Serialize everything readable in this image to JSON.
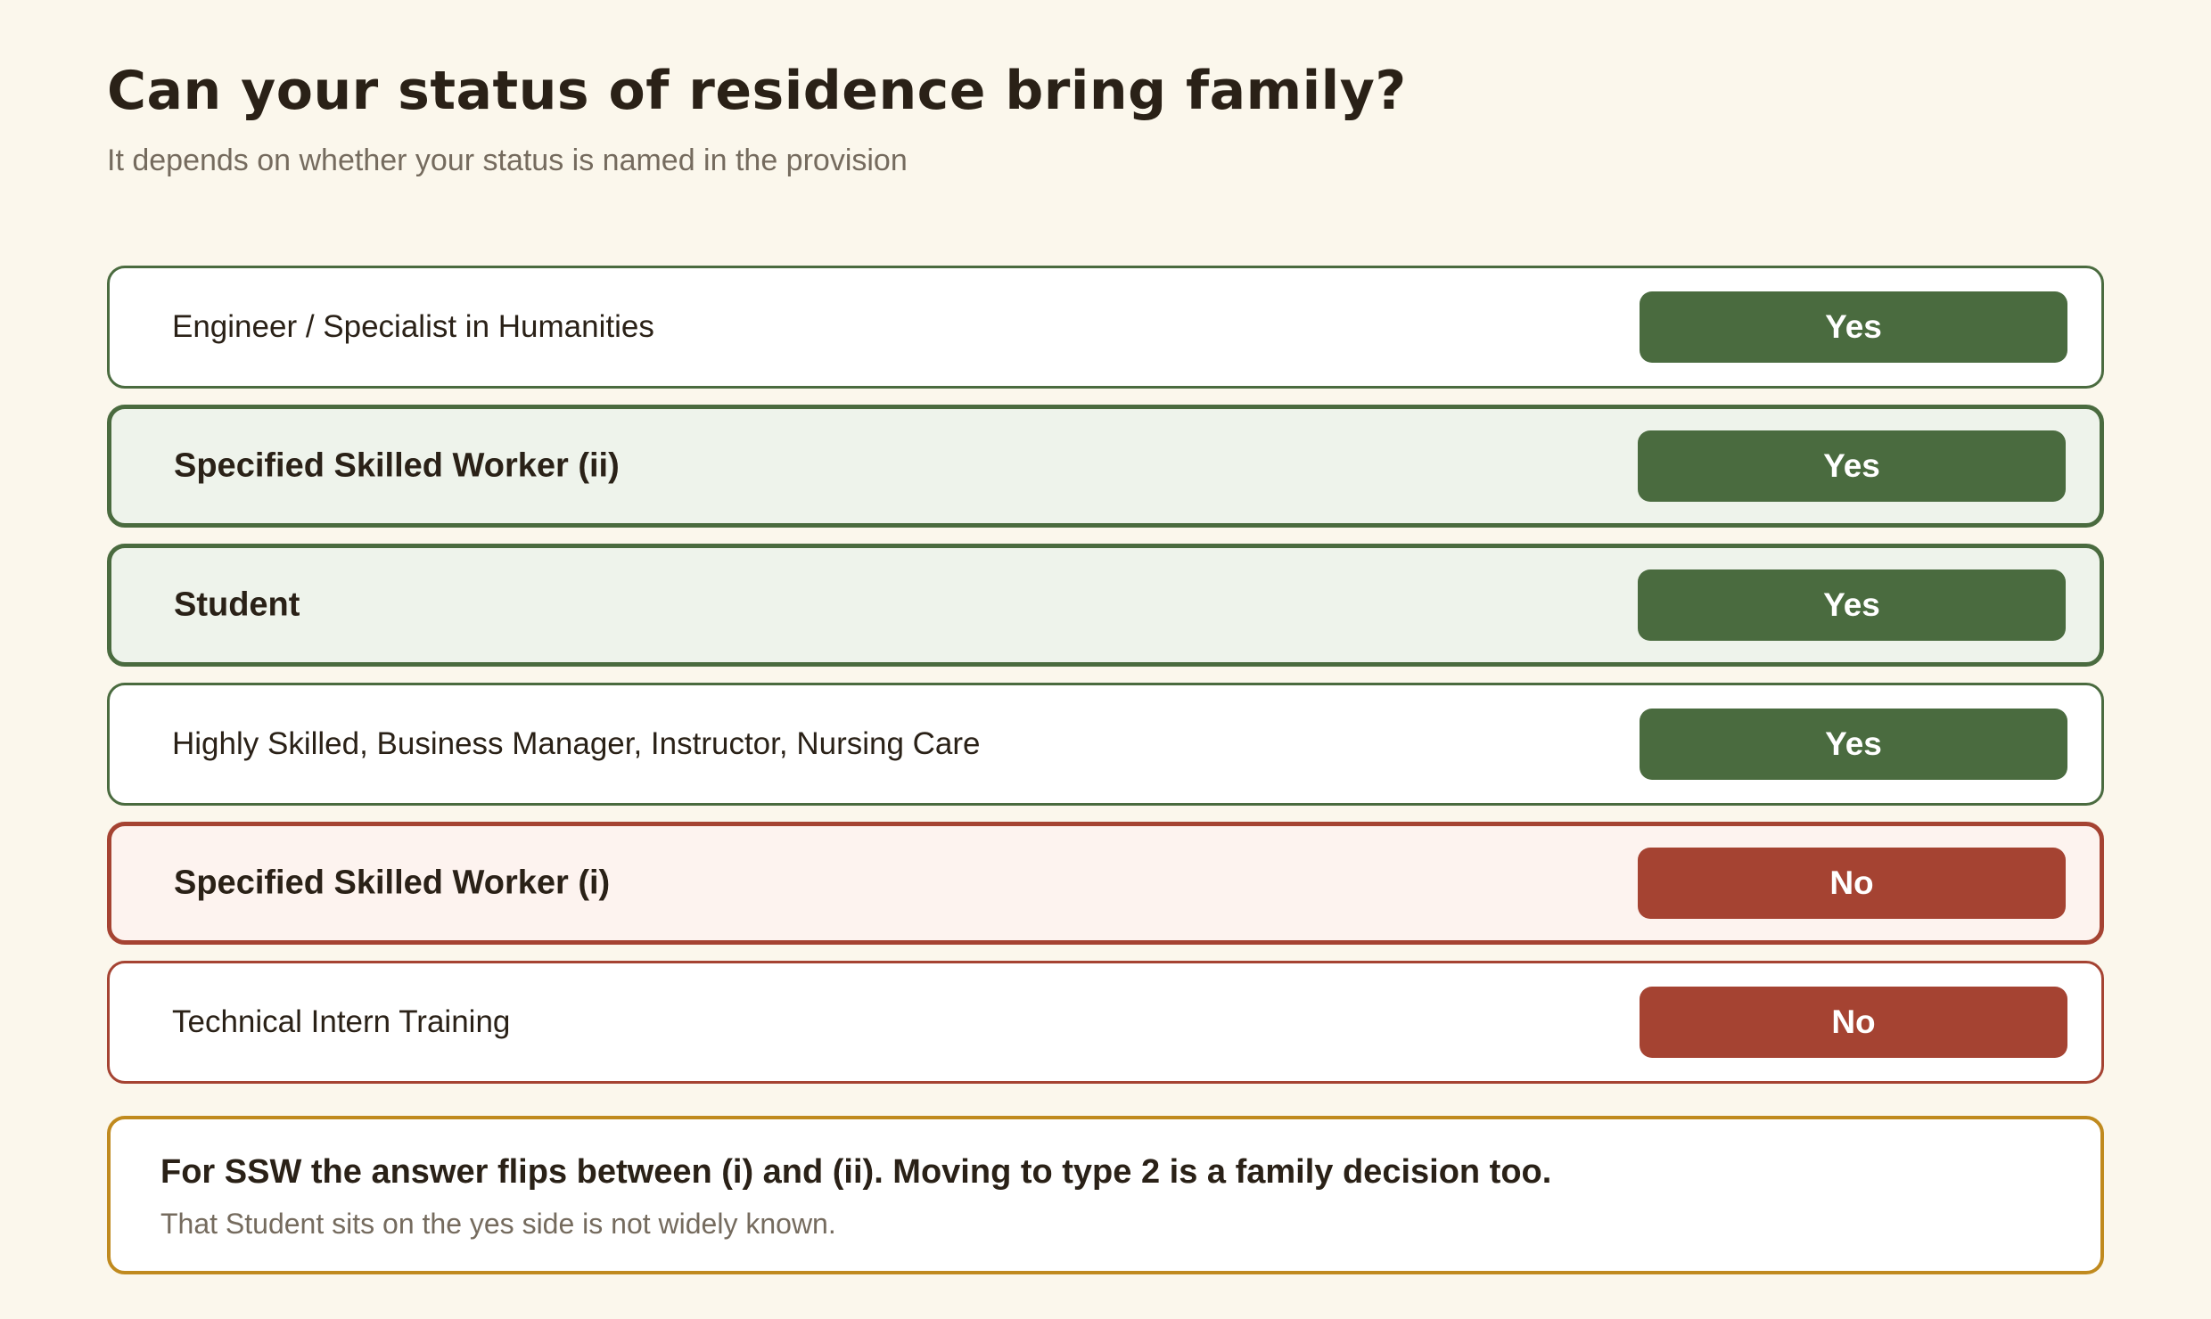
{
  "header": {
    "title": "Can your status of residence bring family?",
    "subtitle": "It depends on whether your status is named in the provision"
  },
  "rows": [
    {
      "label": "Engineer / Specialist in Humanities",
      "answer": "Yes",
      "highlight": false
    },
    {
      "label": "Specified Skilled Worker (ii)",
      "answer": "Yes",
      "highlight": true
    },
    {
      "label": "Student",
      "answer": "Yes",
      "highlight": true
    },
    {
      "label": "Highly Skilled, Business Manager, Instructor, Nursing Care",
      "answer": "Yes",
      "highlight": false
    },
    {
      "label": "Specified Skilled Worker (i)",
      "answer": "No",
      "highlight": true
    },
    {
      "label": "Technical Intern Training",
      "answer": "No",
      "highlight": false
    }
  ],
  "note": {
    "heading": "For SSW the answer flips between (i) and (ii). Moving to type 2 is a family decision too.",
    "body": "That Student sits on the yes side is not widely known."
  },
  "colors": {
    "background": "#fbf7ec",
    "yes": "#4a6b3f",
    "no": "#a54332",
    "note_border": "#c08a1e"
  }
}
